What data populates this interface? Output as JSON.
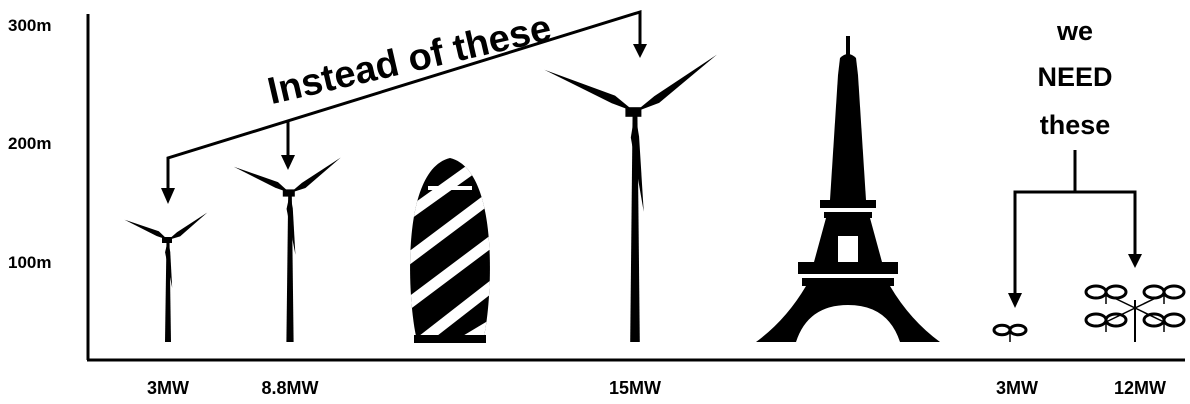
{
  "axis": {
    "ticks": [
      "300m",
      "200m",
      "100m"
    ]
  },
  "annotations": {
    "instead": "Instead of these",
    "we": "we",
    "need": "NEED",
    "these": "these"
  },
  "labels": [
    "3MW",
    "8.8MW",
    "15MW",
    "3MW",
    "12MW"
  ]
}
